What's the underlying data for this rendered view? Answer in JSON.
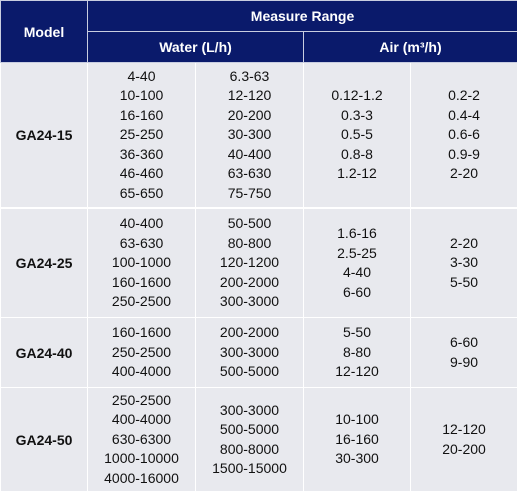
{
  "header": {
    "model_label": "Model",
    "measure_range_label": "Measure Range",
    "water_label": "Water (L/h)",
    "air_label": "Air (m³/h)"
  },
  "rows": [
    {
      "model": "GA24-15",
      "water_a": [
        "4-40",
        "10-100",
        "16-160",
        "25-250",
        "36-360",
        "46-460",
        "65-650"
      ],
      "water_b": [
        "6.3-63",
        "12-120",
        "20-200",
        "30-300",
        "40-400",
        "63-630",
        "75-750"
      ],
      "air_a": [
        "0.12-1.2",
        "0.3-3",
        "0.5-5",
        "0.8-8",
        "1.2-12"
      ],
      "air_b": [
        "0.2-2",
        "0.4-4",
        "0.6-6",
        "0.9-9",
        "2-20"
      ]
    },
    {
      "model": "GA24-25",
      "water_a": [
        "40-400",
        "63-630",
        "100-1000",
        "160-1600",
        "250-2500"
      ],
      "water_b": [
        "50-500",
        "80-800",
        "120-1200",
        "200-2000",
        "300-3000"
      ],
      "air_a": [
        "1.6-16",
        "2.5-25",
        "4-40",
        "6-60"
      ],
      "air_b": [
        "2-20",
        "3-30",
        "5-50"
      ]
    },
    {
      "model": "GA24-40",
      "water_a": [
        "160-1600",
        "250-2500",
        "400-4000"
      ],
      "water_b": [
        "200-2000",
        "300-3000",
        "500-5000"
      ],
      "air_a": [
        "5-50",
        "8-80",
        "12-120"
      ],
      "air_b": [
        "6-60",
        "9-90"
      ]
    },
    {
      "model": "GA24-50",
      "water_a": [
        "250-2500",
        "400-4000",
        "630-6300",
        "1000-10000",
        "4000-16000"
      ],
      "water_b": [
        "300-3000",
        "500-5000",
        "800-8000",
        "1500-15000"
      ],
      "air_a": [
        "10-100",
        "16-160",
        "30-300"
      ],
      "air_b": [
        "12-120",
        "20-200"
      ]
    }
  ]
}
